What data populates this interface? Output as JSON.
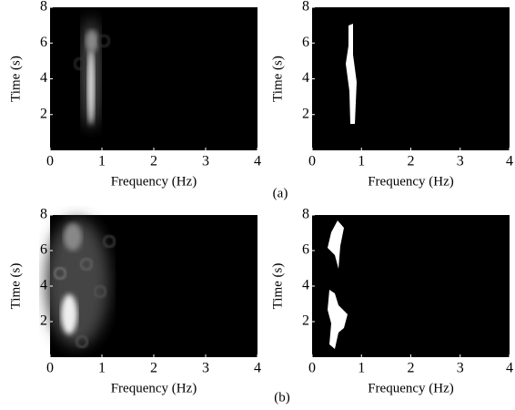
{
  "chart_data": [
    {
      "type": "heatmap",
      "xlabel": "Frequency (Hz)",
      "ylabel": "Time (s)",
      "xlim": [
        0,
        4
      ],
      "ylim": [
        0,
        8
      ],
      "xticks": [
        0,
        1,
        2,
        3,
        4
      ],
      "yticks": [
        2,
        4,
        6,
        8
      ]
    },
    {
      "type": "heatmap",
      "xlabel": "Frequency (Hz)",
      "ylabel": "Time (s)",
      "xlim": [
        0,
        4
      ],
      "ylim": [
        0,
        8
      ],
      "xticks": [
        0,
        1,
        2,
        3,
        4
      ],
      "yticks": [
        2,
        4,
        6,
        8
      ]
    },
    {
      "type": "heatmap",
      "xlabel": "Frequency (Hz)",
      "ylabel": "Time (s)",
      "xlim": [
        0,
        4
      ],
      "ylim": [
        0,
        8
      ],
      "xticks": [
        0,
        1,
        2,
        3,
        4
      ],
      "yticks": [
        2,
        4,
        6,
        8
      ]
    },
    {
      "type": "heatmap",
      "xlabel": "Frequency (Hz)",
      "ylabel": "Time (s)",
      "xlim": [
        0,
        4
      ],
      "ylim": [
        0,
        8
      ],
      "xticks": [
        0,
        1,
        2,
        3,
        4
      ],
      "yticks": [
        2,
        4,
        6,
        8
      ]
    }
  ],
  "captions": [
    "(a)",
    "(b)"
  ]
}
